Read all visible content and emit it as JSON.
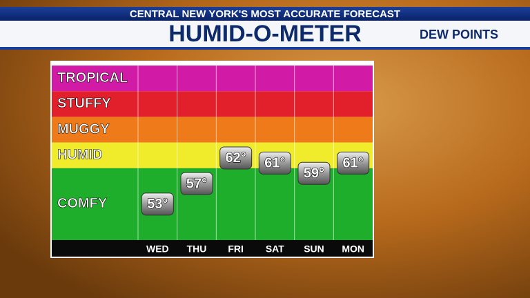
{
  "header": {
    "banner": "CENTRAL NEW YORK'S MOST ACCURATE FORECAST"
  },
  "chart_data": {
    "type": "meter",
    "title": "HUMID-O-METER",
    "subtitle": "DEW POINTS",
    "categories": [
      "WED",
      "THU",
      "FRI",
      "SAT",
      "SUN",
      "MON"
    ],
    "values": [
      53,
      57,
      62,
      61,
      59,
      61
    ],
    "value_labels": [
      "53°",
      "57°",
      "62°",
      "61°",
      "59°",
      "61°"
    ],
    "ylim": [
      46,
      80
    ],
    "zones": [
      {
        "label": "TROPICAL",
        "range": [
          75,
          80
        ],
        "color": "#d11ba6"
      },
      {
        "label": "STUFFY",
        "range": [
          70,
          75
        ],
        "color": "#e2202c"
      },
      {
        "label": "MUGGY",
        "range": [
          65,
          70
        ],
        "color": "#ef7a1a"
      },
      {
        "label": "HUMID",
        "range": [
          60,
          65
        ],
        "color": "#f0ec2c"
      },
      {
        "label": "COMFY",
        "range": [
          46,
          60
        ],
        "color": "#1fae2c"
      }
    ]
  }
}
